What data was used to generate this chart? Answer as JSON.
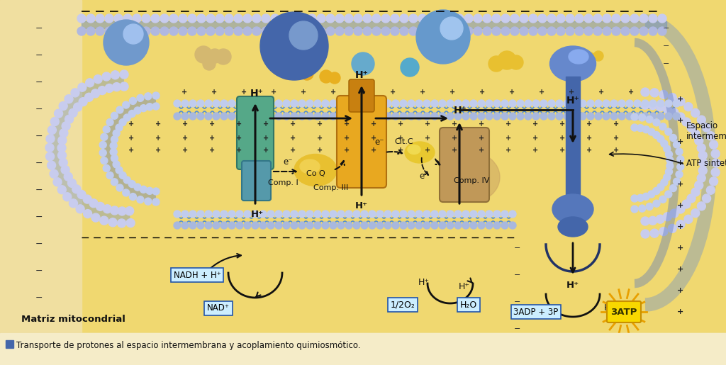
{
  "bg_outer": "#f5e8a8",
  "bg_matrix": "#f0d870",
  "bg_intermem": "#e8d8a0",
  "bg_caption": "#f5ecc8",
  "bead_outer1": "#c8ccee",
  "bead_outer2": "#b0b8e0",
  "bead_inner1": "#c0ccee",
  "bead_inner2": "#a8b8de",
  "tail_color": "#7090c8",
  "tail_inner": "#5878c0",
  "membrane_wavy": "#5890d0",
  "comp1_color": "#55a888",
  "comp1_edge": "#337766",
  "comp3_color": "#e8a820",
  "comp3_edge": "#b07010",
  "comp4_color": "#c09858",
  "comp4_edge": "#907038",
  "atp_color": "#4466aa",
  "atp_light": "#6688cc",
  "coq_color": "#e8c030",
  "citc_color": "#e8c830",
  "sphere_blue1": "#6699cc",
  "sphere_blue2": "#88aadd",
  "sphere_blue_large": "#5577bb",
  "tan_blob": "#d4b870",
  "yellow_blob": "#e8c040",
  "brown_blob": "#c8a060",
  "plus_color": "#222222",
  "minus_color": "#333333",
  "arrow_color": "#111111",
  "box_bg": "#cceeee",
  "atp_box_bg": "#f8d800",
  "atp_box_edge": "#c89000",
  "caption": "Transporte de protones al espacio intermembrana y acoplamiento quimiosmótico.",
  "label_matrix": "Matriz mitocondrial",
  "label_espacio": "Espacio\nintermembrana",
  "label_atp_sin": "ATP sintetasa",
  "comp1_lbl": "Comp. I",
  "coq_lbl": "Co Q",
  "comp3_lbl": "Comp. III",
  "citc_lbl": "Cit.C",
  "comp4_lbl": "Comp. IV",
  "nadh_lbl": "NADH + H⁺",
  "nad_lbl": "NAD⁺",
  "o2_lbl": "1/2O₂",
  "h2o_lbl": "H₂O",
  "adp_lbl": "3ADP + 3P",
  "atp_lbl": "3ATP",
  "hplus": "H⁺",
  "eminus": "e⁻"
}
